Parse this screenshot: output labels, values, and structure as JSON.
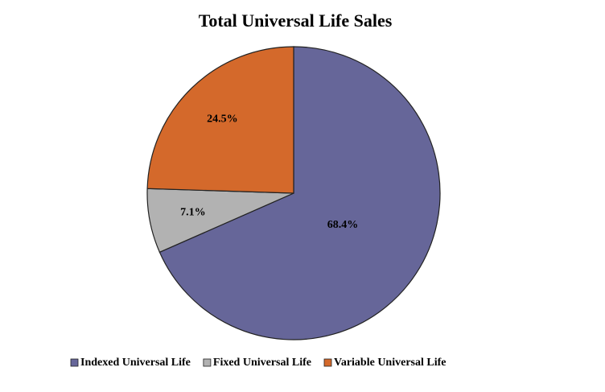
{
  "chart_data": {
    "type": "pie",
    "title": "Total Universal Life Sales",
    "categories": [
      "Indexed Universal Life",
      "Fixed Universal Life",
      "Variable Universal Life"
    ],
    "values": [
      68.4,
      7.1,
      24.5
    ],
    "value_labels": [
      "68.4%",
      "7.1%",
      "24.5%"
    ],
    "colors": [
      "#666699",
      "#b2b2b2",
      "#d4692b"
    ],
    "legend": "bottom"
  }
}
